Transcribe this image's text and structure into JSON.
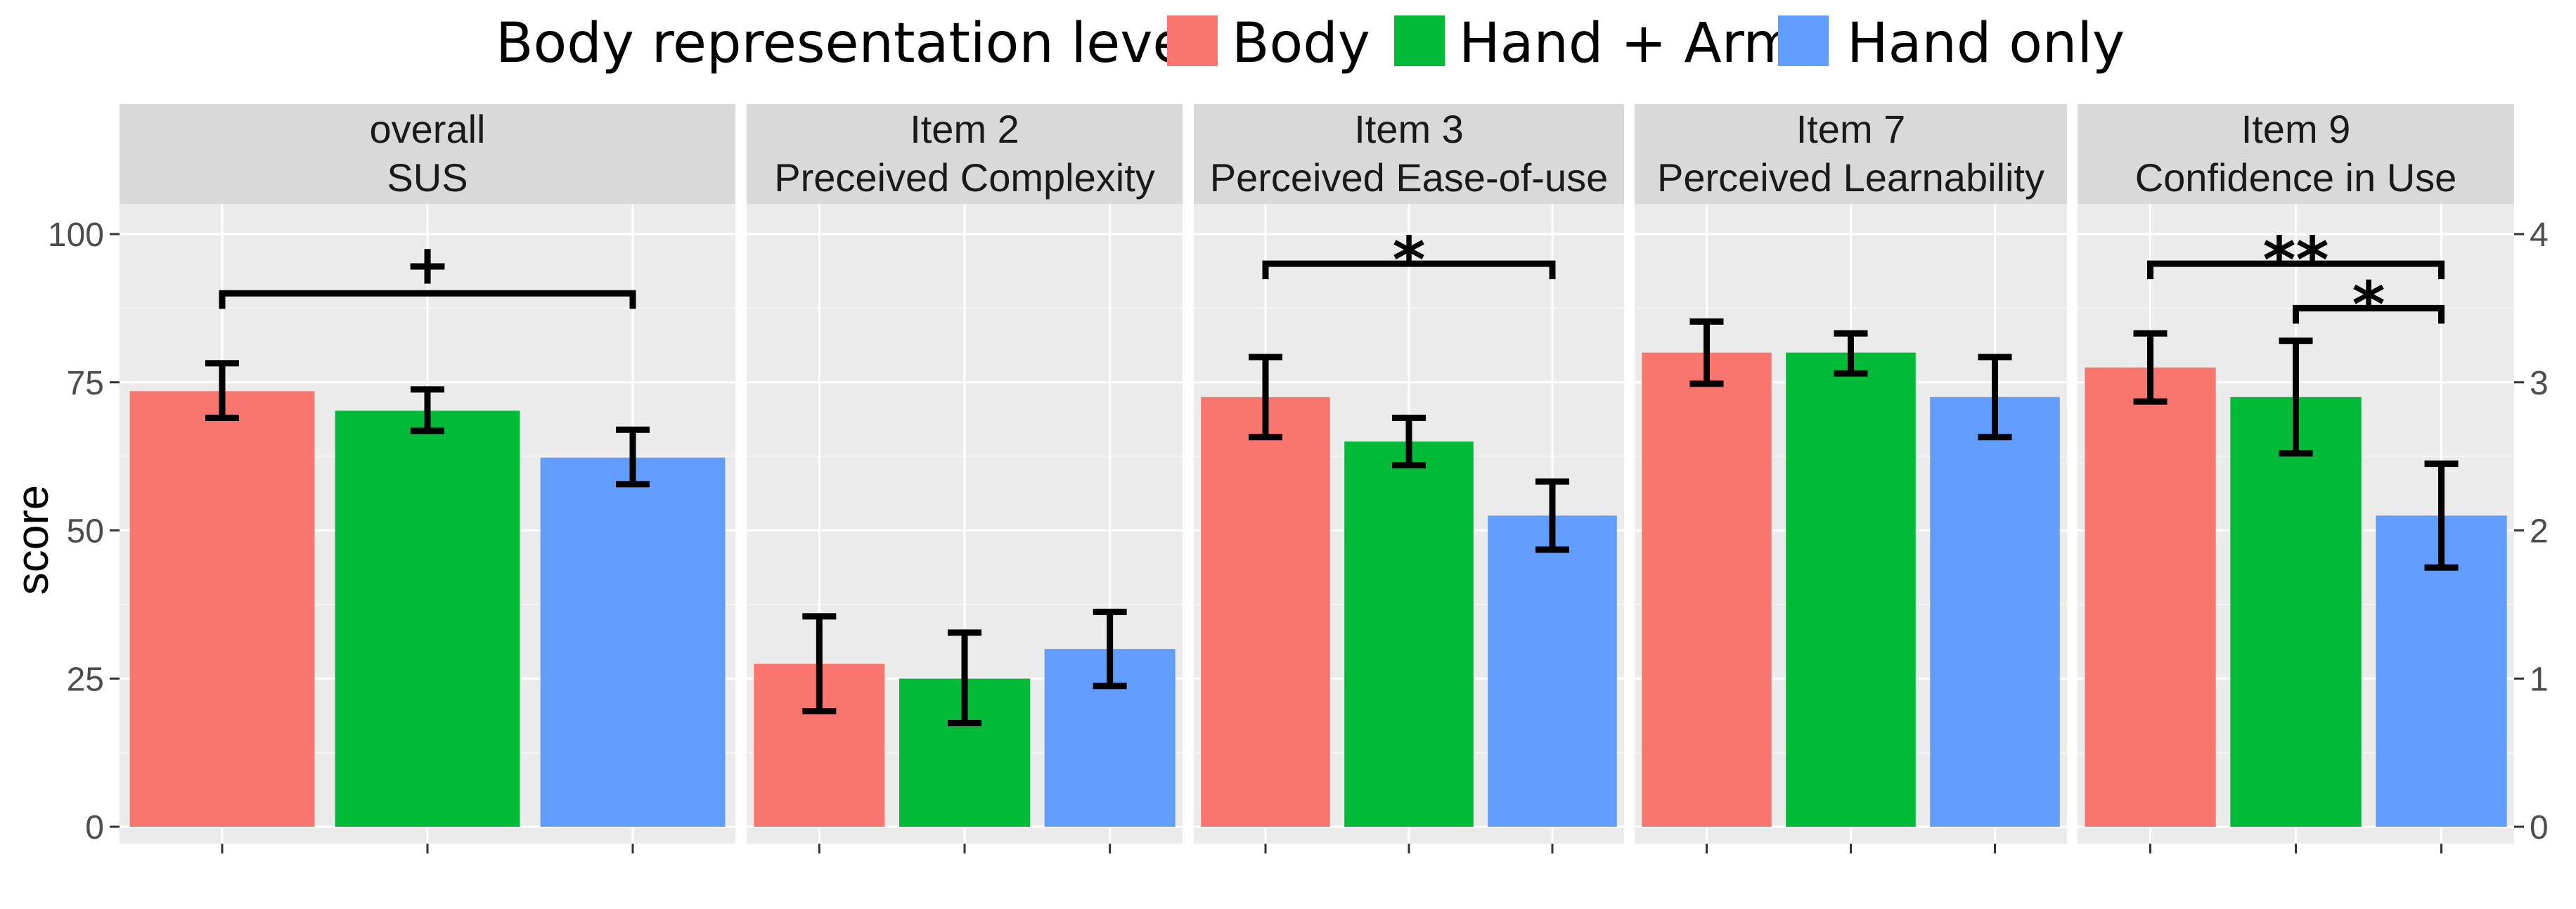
{
  "chart_data": {
    "type": "bar",
    "legend": {
      "title": "Body representation level",
      "entries": [
        {
          "name": "Body",
          "color": "#F8766D"
        },
        {
          "name": "Hand + Arm",
          "color": "#00BA38"
        },
        {
          "name": "Hand only",
          "color": "#619CFF"
        }
      ],
      "position": "top"
    },
    "ylabel": "score",
    "left_axis": {
      "ylim": [
        0,
        100
      ],
      "ticks": [
        "0",
        "25",
        "50",
        "75",
        "100"
      ]
    },
    "right_axis": {
      "ylim": [
        0,
        4
      ],
      "ticks": [
        "0",
        "1",
        "2",
        "3",
        "4"
      ]
    },
    "categories": [
      "Body",
      "Hand + Arm",
      "Hand only"
    ],
    "panels": [
      {
        "title_line1": "overall",
        "title_line2": "SUS",
        "axis": "left",
        "values": [
          73.5,
          70.2,
          62.3
        ],
        "err_low": [
          69.0,
          66.8,
          57.8
        ],
        "err_high": [
          78.2,
          73.8,
          67.0
        ],
        "annotations": [
          {
            "label": "+",
            "from": 0,
            "to": 2,
            "level": 90
          }
        ]
      },
      {
        "title_line1": "Item 2",
        "title_line2": "Preceived Complexity",
        "axis": "right",
        "values": [
          1.1,
          1.0,
          1.2
        ],
        "err_low": [
          0.78,
          0.7,
          0.95
        ],
        "err_high": [
          1.42,
          1.31,
          1.45
        ],
        "annotations": []
      },
      {
        "title_line1": "Item 3",
        "title_line2": "Perceived Ease-of-use",
        "axis": "right",
        "values": [
          2.9,
          2.6,
          2.1
        ],
        "err_low": [
          2.63,
          2.44,
          1.87
        ],
        "err_high": [
          3.17,
          2.76,
          2.33
        ],
        "annotations": [
          {
            "label": "*",
            "from": 0,
            "to": 2,
            "level": 3.8
          }
        ]
      },
      {
        "title_line1": "Item 7",
        "title_line2": "Perceived Learnability",
        "axis": "right",
        "values": [
          3.2,
          3.2,
          2.9
        ],
        "err_low": [
          2.99,
          3.06,
          2.63
        ],
        "err_high": [
          3.41,
          3.33,
          3.17
        ],
        "annotations": []
      },
      {
        "title_line1": "Item 9",
        "title_line2": "Confidence in Use",
        "axis": "right",
        "values": [
          3.1,
          2.9,
          2.1
        ],
        "err_low": [
          2.87,
          2.52,
          1.75
        ],
        "err_high": [
          3.33,
          3.28,
          2.45
        ],
        "annotations": [
          {
            "label": "**",
            "from": 0,
            "to": 2,
            "level": 3.8
          },
          {
            "label": "*",
            "from": 1,
            "to": 2,
            "level": 3.5
          }
        ]
      }
    ]
  }
}
